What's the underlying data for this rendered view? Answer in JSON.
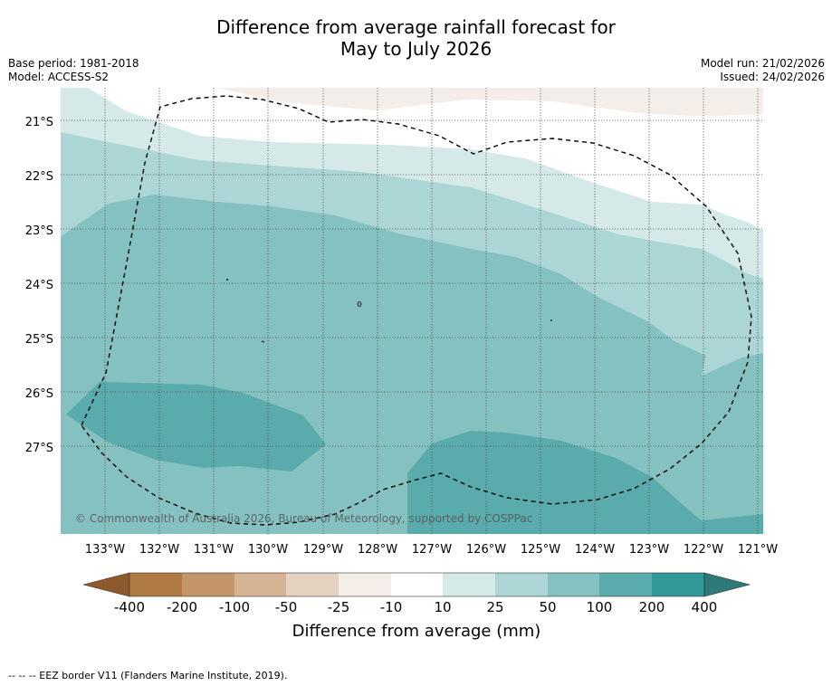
{
  "title": {
    "line1": "Difference from average rainfall forecast for",
    "line2": "May to July 2026"
  },
  "meta": {
    "base_period": "Base period: 1981-2018",
    "model": "Model: ACCESS-S2",
    "model_run": "Model run: 21/02/2026",
    "issued": "Issued: 24/02/2026"
  },
  "map": {
    "latitudes": [
      "21°S",
      "22°S",
      "23°S",
      "24°S",
      "25°S",
      "26°S",
      "27°S"
    ],
    "longitudes": [
      "133°W",
      "132°W",
      "131°W",
      "130°W",
      "129°W",
      "128°W",
      "127°W",
      "126°W",
      "125°W",
      "124°W",
      "123°W",
      "122°W",
      "121°W"
    ],
    "copyright": "© Commonwealth of Australia 2026, Bureau of Meteorology, supported by COSPPac",
    "legend_colors": {
      "neg_400": "#8e5a2b",
      "neg_200": "#b07a44",
      "neg_100": "#c4956a",
      "neg_50": "#d5b394",
      "neg_25": "#e5d1c0",
      "neg_10": "#f5eee8",
      "zero": "#ffffff",
      "pos_10": "#d5e9e9",
      "pos_25": "#acd6d6",
      "pos_50": "#85c1c1",
      "pos_100": "#5aabab",
      "pos_200": "#339898",
      "pos_400": "#2e7a78"
    }
  },
  "colorbar": {
    "labels": [
      "-400",
      "-200",
      "-100",
      "-50",
      "-25",
      "-10",
      "10",
      "25",
      "50",
      "100",
      "200",
      "400"
    ],
    "title": "Difference from average (mm)"
  },
  "footnote": "--  --  -- EEZ border V11 (Flanders Marine Institute, 2019)."
}
